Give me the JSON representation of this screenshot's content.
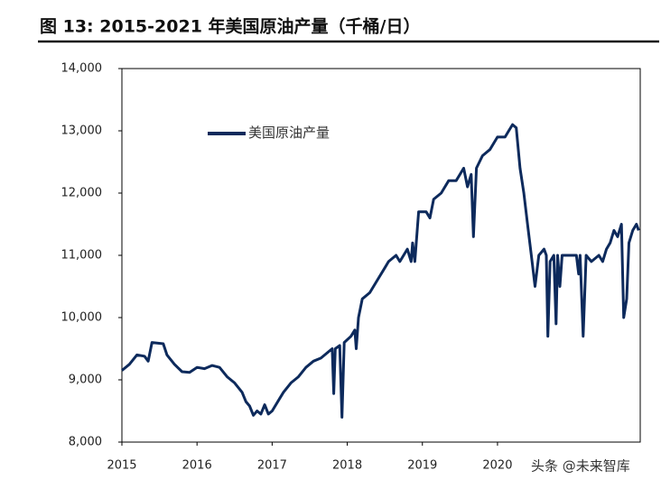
{
  "chart_data": {
    "type": "line",
    "title": "图 13:  2015-2021 年美国原油产量（千桶/日）",
    "watermark": "头条 @未来智库",
    "xlim": [
      2015,
      2021.9
    ],
    "xticks": [
      2015,
      2016,
      2017,
      2018,
      2019,
      2020
    ],
    "ylim": [
      8000,
      14000
    ],
    "yticks": [
      {
        "value": 8000,
        "label": "8,000"
      },
      {
        "value": 9000,
        "label": "9,000"
      },
      {
        "value": 10000,
        "label": "10,000"
      },
      {
        "value": 11000,
        "label": "11,000"
      },
      {
        "value": 12000,
        "label": "12,000"
      },
      {
        "value": 13000,
        "label": "13,000"
      },
      {
        "value": 14000,
        "label": "14,000"
      }
    ],
    "legend": "upper left",
    "x": [
      2015.0,
      2015.1,
      2015.2,
      2015.3,
      2015.35,
      2015.4,
      2015.55,
      2015.6,
      2015.7,
      2015.8,
      2015.9,
      2016.0,
      2016.1,
      2016.2,
      2016.3,
      2016.4,
      2016.5,
      2016.6,
      2016.65,
      2016.7,
      2016.75,
      2016.8,
      2016.85,
      2016.9,
      2016.95,
      2017.0,
      2017.1,
      2017.15,
      2017.25,
      2017.35,
      2017.45,
      2017.55,
      2017.65,
      2017.7,
      2017.75,
      2017.8,
      2017.82,
      2017.84,
      2017.9,
      2017.93,
      2017.96,
      2018.05,
      2018.1,
      2018.12,
      2018.15,
      2018.2,
      2018.3,
      2018.4,
      2018.5,
      2018.55,
      2018.65,
      2018.7,
      2018.8,
      2018.85,
      2018.87,
      2018.9,
      2018.95,
      2019.05,
      2019.1,
      2019.15,
      2019.25,
      2019.35,
      2019.45,
      2019.55,
      2019.6,
      2019.65,
      2019.68,
      2019.72,
      2019.8,
      2019.9,
      2020.0,
      2020.1,
      2020.15,
      2020.2,
      2020.25,
      2020.3,
      2020.35,
      2020.4,
      2020.45,
      2020.5,
      2020.55,
      2020.62,
      2020.65,
      2020.67,
      2020.7,
      2020.75,
      2020.78,
      2020.8,
      2020.83,
      2020.86,
      2020.95,
      2021.05,
      2021.08,
      2021.1,
      2021.14,
      2021.18,
      2021.25,
      2021.35,
      2021.4,
      2021.45,
      2021.5,
      2021.55,
      2021.6,
      2021.65,
      2021.68,
      2021.72,
      2021.75,
      2021.8,
      2021.85,
      2021.88
    ],
    "series": [
      {
        "name": "美国原油产量",
        "color": "#0d2a5c",
        "values": [
          9150,
          9250,
          9400,
          9380,
          9300,
          9600,
          9580,
          9400,
          9250,
          9130,
          9120,
          9200,
          9180,
          9230,
          9200,
          9050,
          8950,
          8800,
          8650,
          8580,
          8430,
          8500,
          8450,
          8600,
          8450,
          8500,
          8700,
          8800,
          8950,
          9050,
          9200,
          9300,
          9350,
          9400,
          9450,
          9500,
          8780,
          9500,
          9550,
          8400,
          9600,
          9700,
          9800,
          9500,
          10000,
          10300,
          10400,
          10600,
          10800,
          10900,
          11000,
          10900,
          11100,
          10900,
          11200,
          10900,
          11700,
          11700,
          11600,
          11900,
          12000,
          12200,
          12200,
          12400,
          12100,
          12300,
          11300,
          12400,
          12600,
          12700,
          12900,
          12900,
          13000,
          13100,
          13050,
          12400,
          12000,
          11500,
          11000,
          10500,
          11000,
          11100,
          11000,
          9700,
          10900,
          11000,
          9900,
          11000,
          10500,
          11000,
          11000,
          11000,
          10700,
          11000,
          9700,
          11000,
          10900,
          11000,
          10900,
          11100,
          11200,
          11400,
          11300,
          11500,
          10000,
          10300,
          11200,
          11400,
          11500,
          11400
        ]
      }
    ]
  }
}
